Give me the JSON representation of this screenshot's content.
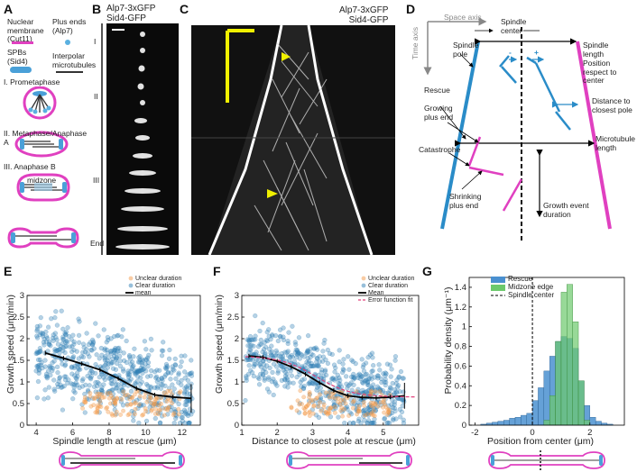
{
  "panels": {
    "A": "A",
    "B": "B",
    "C": "C",
    "D": "D",
    "E": "E",
    "F": "F",
    "G": "G"
  },
  "panelA": {
    "legend": {
      "nuclear_membrane": "Nuclear membrane (Cut11)",
      "plus_ends": "Plus ends (Alp7)",
      "spbs": "SPBs (Sid4)",
      "interpolar": "Interpolar microtubules"
    },
    "stages": [
      "I. Prometaphase",
      "II. Metaphase/Anaphase A",
      "III. Anaphase B"
    ],
    "midzone": "midzone",
    "colors": {
      "magenta": "#e040c0",
      "blue": "#4aa0d8"
    }
  },
  "panelB": {
    "title_line1": "Alp7-3xGFP",
    "title_line2": "Sid4-GFP",
    "stages": [
      "I",
      "II",
      "III",
      "End"
    ]
  },
  "panelC": {
    "title_line1": "Alp7-3xGFP",
    "title_line2": "Sid4-GFP"
  },
  "panelD": {
    "space_axis": "Space axis",
    "time_axis": "Time axis",
    "spindle_center": "Spindle center",
    "spindle_pole": "Spindle pole",
    "spindle_length": "Spindle length",
    "position_center": "Position respect to center",
    "rescue": "Rescue",
    "growing_plus_end": "Growing plus end",
    "distance_pole": "Distance to closest pole",
    "mt_length": "Microtubule length",
    "catastrophe": "Catastrophe",
    "shrinking_plus_end": "Shrinking plus end",
    "growth_event_duration": "Growth event duration",
    "minus": "-",
    "plus": "+"
  },
  "panelE": {
    "legend": [
      "Unclear duration",
      "Clear duration",
      "mean"
    ],
    "xlabel": "Spindle length at rescue (μm)",
    "ylabel": "Growth speed (μm/min)",
    "xticks": [
      "4",
      "6",
      "8",
      "10",
      "12"
    ],
    "yticks": [
      "0",
      "0.5",
      "1",
      "1.5",
      "2",
      "2.5",
      "3"
    ],
    "mean_x": [
      4.5,
      5.5,
      6.5,
      7.5,
      8.5,
      9.5,
      10.5,
      11.5,
      12.5
    ],
    "mean_y": [
      1.67,
      1.55,
      1.42,
      1.28,
      1.08,
      0.85,
      0.7,
      0.65,
      0.62
    ],
    "xlim": [
      3.5,
      13
    ],
    "ylim": [
      0,
      3
    ]
  },
  "panelF": {
    "legend": [
      "Unclear duration",
      "Clear duration",
      "Mean",
      "Error function fit"
    ],
    "xlabel": "Distance to closest pole at rescue (μm)",
    "ylabel": "Growth speed (μm/min)",
    "xticks": [
      "1",
      "2",
      "3",
      "4",
      "5"
    ],
    "yticks": [
      "0",
      "0.5",
      "1",
      "1.5",
      "2",
      "2.5",
      "3"
    ],
    "mean_x": [
      1.2,
      1.6,
      2.0,
      2.4,
      2.8,
      3.2,
      3.6,
      4.0,
      4.4,
      4.8,
      5.2,
      5.6
    ],
    "mean_y": [
      1.6,
      1.57,
      1.48,
      1.35,
      1.18,
      0.98,
      0.8,
      0.68,
      0.64,
      0.63,
      0.65,
      0.68
    ],
    "xlim": [
      1,
      6
    ],
    "ylim": [
      0,
      3
    ]
  },
  "panelG": {
    "legend": [
      "Rescue",
      "Midzone edge",
      "Spindle center"
    ],
    "xlabel": "Position from center (μm)",
    "ylabel": "Probability density (μm⁻¹)",
    "xticks": [
      "-2",
      "0",
      "2"
    ],
    "yticks": [
      "0",
      "0.2",
      "0.4",
      "0.6",
      "0.8",
      "1",
      "1.2",
      "1.4"
    ],
    "xlim": [
      -2.2,
      3.2
    ],
    "ylim": [
      0,
      1.5
    ],
    "bin_edges": [
      -1.8,
      -1.6,
      -1.4,
      -1.2,
      -1.0,
      -0.8,
      -0.6,
      -0.4,
      -0.2,
      0.0,
      0.2,
      0.4,
      0.6,
      0.8,
      1.0,
      1.2,
      1.4,
      1.6,
      1.8,
      2.0,
      2.2,
      2.4,
      2.6,
      2.8
    ],
    "rescue": [
      0.01,
      0.02,
      0.03,
      0.04,
      0.05,
      0.07,
      0.08,
      0.1,
      0.12,
      0.25,
      0.38,
      0.55,
      0.7,
      0.85,
      0.9,
      0.88,
      0.78,
      0.45,
      0.2,
      0.08,
      0.04,
      0.02,
      0.01
    ],
    "midzone": [
      0,
      0,
      0,
      0,
      0,
      0,
      0,
      0,
      0,
      0,
      0,
      0.05,
      0.3,
      0.85,
      1.35,
      1.43,
      1.05,
      0.45,
      0.05,
      0,
      0,
      0,
      0
    ]
  }
}
